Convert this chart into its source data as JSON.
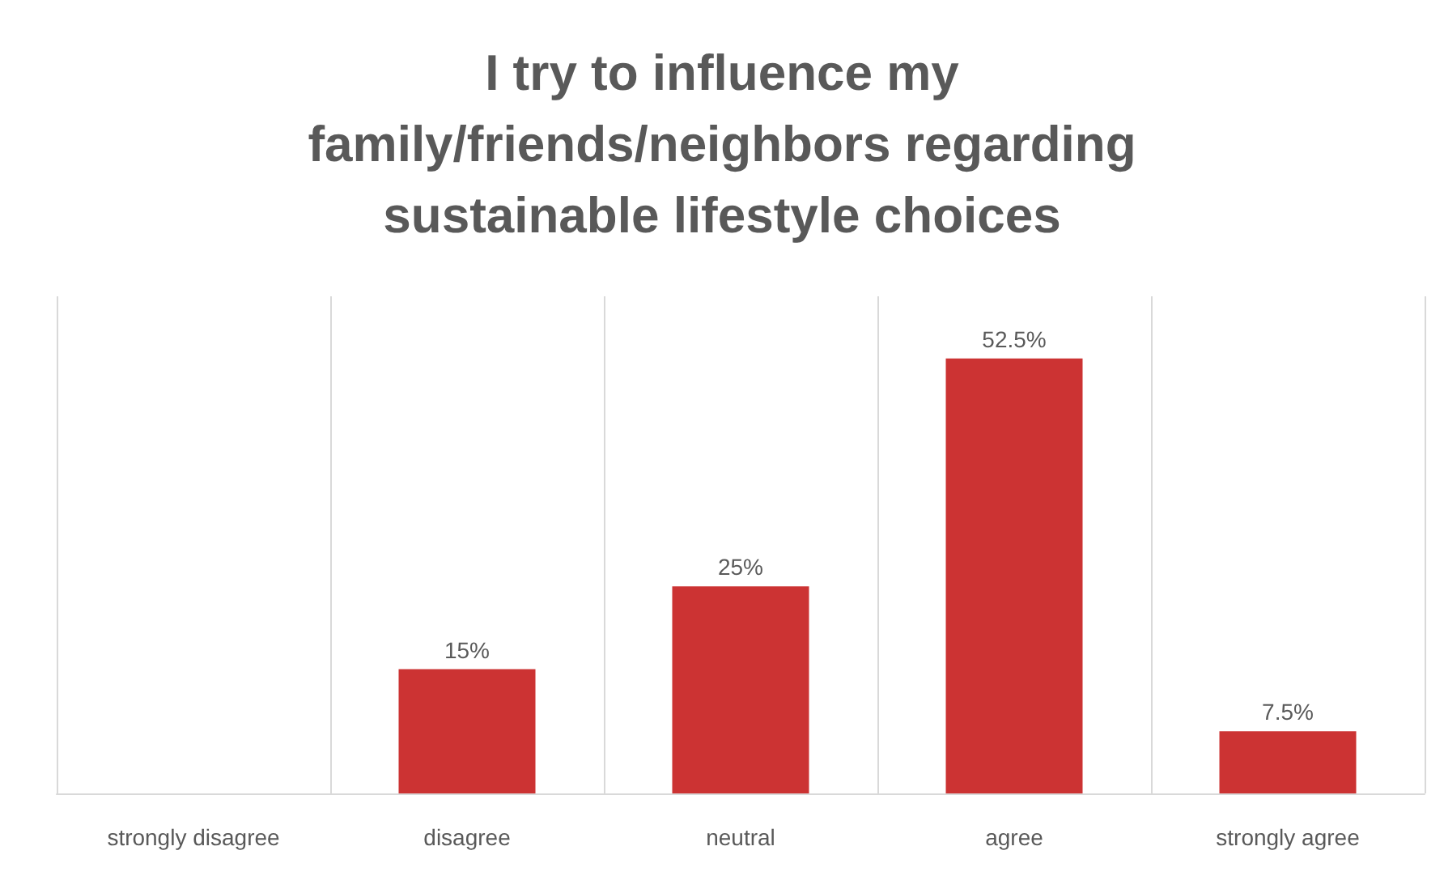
{
  "chart_data": {
    "type": "bar",
    "title": "I try to influence my\nfamily/friends/neighbors regarding\nsustainable lifestyle choices",
    "categories": [
      "strongly disagree",
      "disagree",
      "neutral",
      "agree",
      "strongly agree"
    ],
    "values": [
      0,
      15,
      25,
      52.5,
      7.5
    ],
    "value_labels": [
      null,
      "15%",
      "25%",
      "52.5%",
      "7.5%"
    ],
    "color": "#cc3333",
    "ylim": [
      0,
      60
    ],
    "tick_labels": "x",
    "grid": "x"
  }
}
